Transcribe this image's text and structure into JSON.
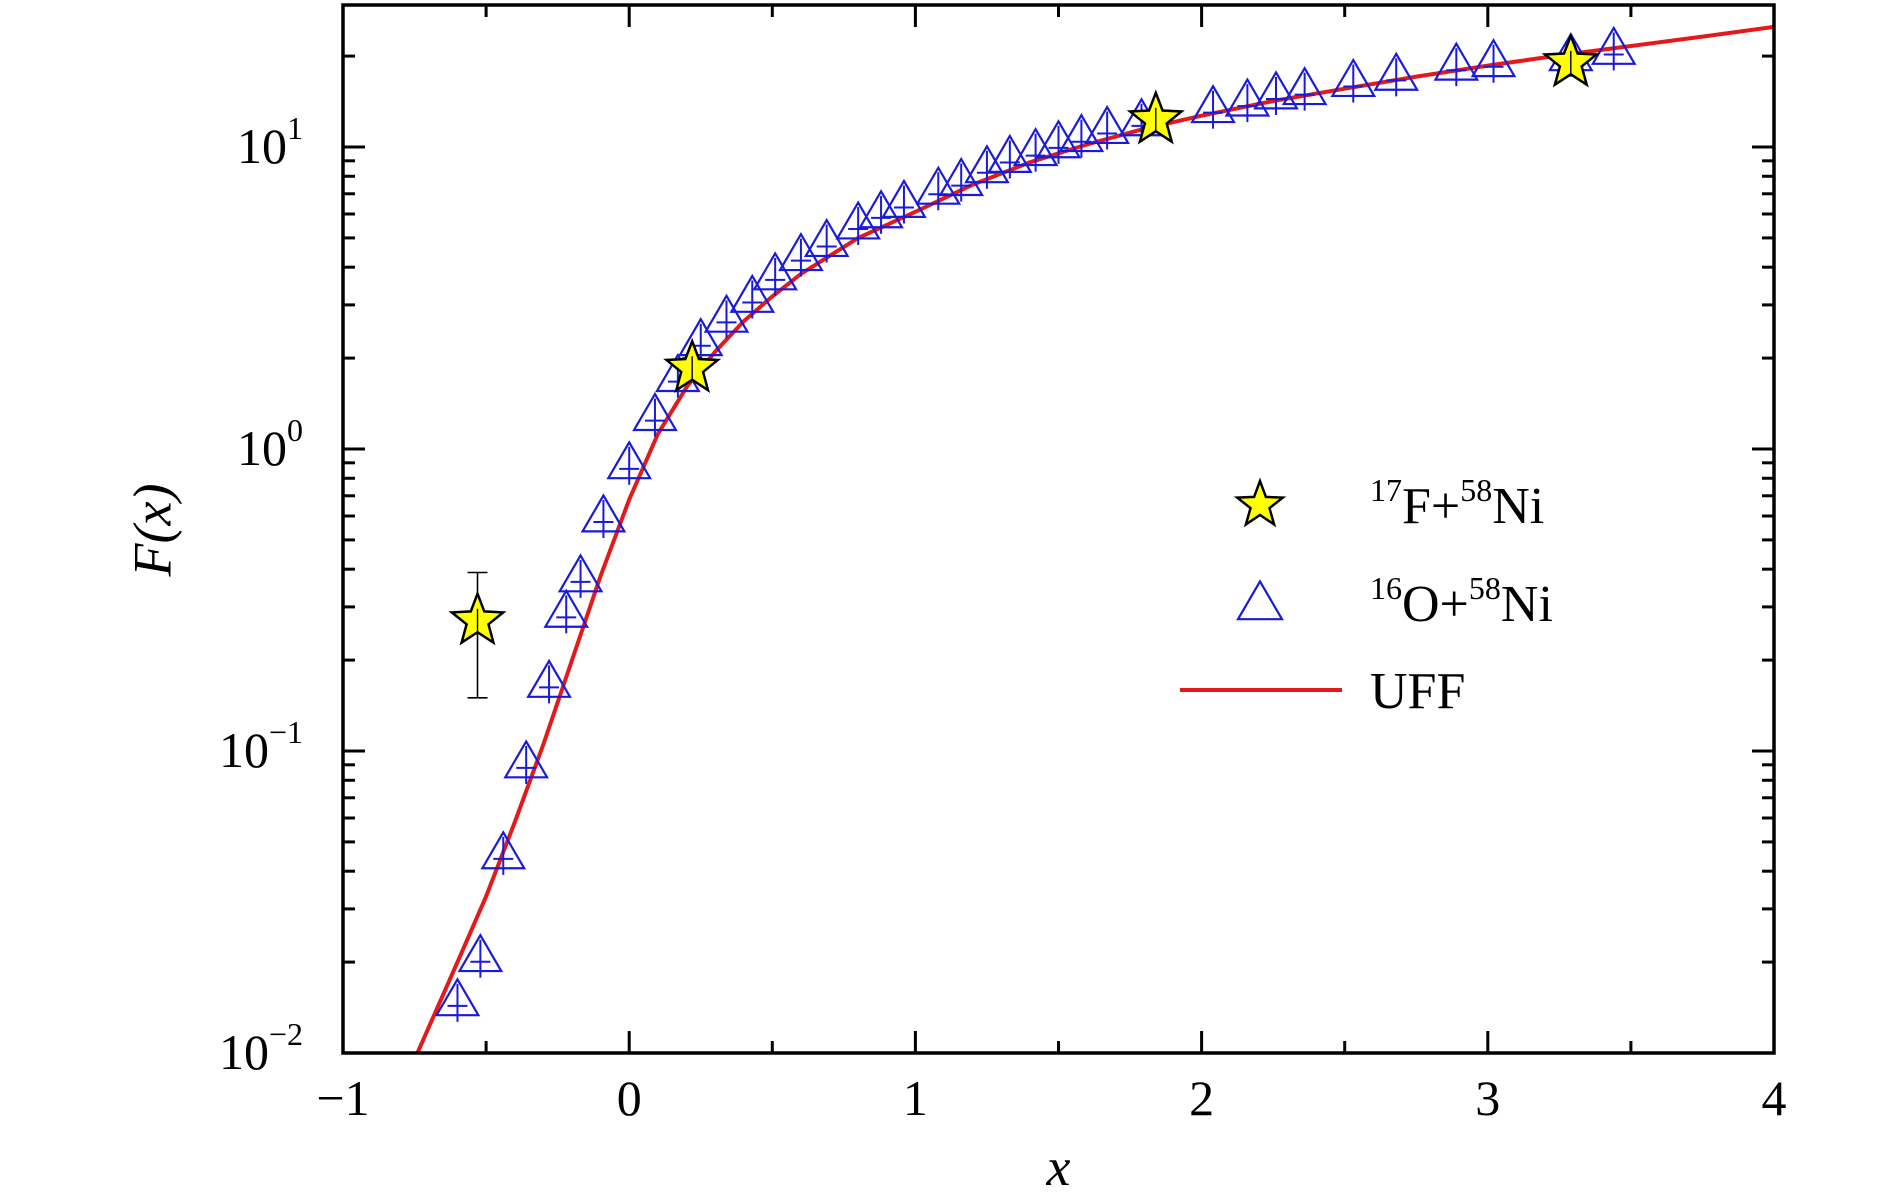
{
  "chart_data": {
    "type": "scatter",
    "title": "",
    "xlabel": "x",
    "ylabel": "F(x)",
    "xlim": [
      -1,
      4
    ],
    "ylim": [
      0.01,
      30
    ],
    "y_scale": "log",
    "grid": false,
    "legend_position": "right-middle",
    "x_ticks": [
      -1,
      0,
      1,
      2,
      3,
      4
    ],
    "x_tick_labels": [
      "−1",
      "0",
      "1",
      "2",
      "3",
      "4"
    ],
    "y_ticks": [
      {
        "value": 0.01,
        "base": "10",
        "exp": "−2"
      },
      {
        "value": 0.1,
        "base": "10",
        "exp": "−1"
      },
      {
        "value": 1,
        "base": "10",
        "exp": "0"
      },
      {
        "value": 10,
        "base": "10",
        "exp": "1"
      }
    ],
    "series": [
      {
        "name_parts": [
          {
            "t": "17",
            "sup": true
          },
          {
            "t": "F+",
            "sup": false
          },
          {
            "t": "58",
            "sup": true
          },
          {
            "t": "Ni",
            "sup": false
          }
        ],
        "marker": "star",
        "color": "#ffff00",
        "edge_color": "#000000",
        "points": [
          {
            "x": -0.53,
            "y": 0.27,
            "y_low": 0.15,
            "y_high": 0.39
          },
          {
            "x": 0.22,
            "y": 1.85,
            "y_low": 1.7,
            "y_high": 2.0
          },
          {
            "x": 1.84,
            "y": 12.3,
            "y_low": 11.6,
            "y_high": 13.0
          },
          {
            "x": 3.29,
            "y": 19.0,
            "y_low": 18.0,
            "y_high": 20.0
          }
        ]
      },
      {
        "name_parts": [
          {
            "t": "16",
            "sup": true
          },
          {
            "t": "O+",
            "sup": false
          },
          {
            "t": "58",
            "sup": true
          },
          {
            "t": "Ni",
            "sup": false
          }
        ],
        "marker": "triangle-open",
        "color": "#1a1adb",
        "points": [
          {
            "x": -0.6,
            "y": 0.015
          },
          {
            "x": -0.52,
            "y": 0.021
          },
          {
            "x": -0.44,
            "y": 0.046
          },
          {
            "x": -0.36,
            "y": 0.092
          },
          {
            "x": -0.28,
            "y": 0.17
          },
          {
            "x": -0.22,
            "y": 0.29
          },
          {
            "x": -0.17,
            "y": 0.38
          },
          {
            "x": -0.09,
            "y": 0.6
          },
          {
            "x": 0.0,
            "y": 0.9
          },
          {
            "x": 0.09,
            "y": 1.3
          },
          {
            "x": 0.17,
            "y": 1.75
          },
          {
            "x": 0.25,
            "y": 2.3
          },
          {
            "x": 0.34,
            "y": 2.75
          },
          {
            "x": 0.43,
            "y": 3.2
          },
          {
            "x": 0.51,
            "y": 3.8
          },
          {
            "x": 0.6,
            "y": 4.4
          },
          {
            "x": 0.69,
            "y": 4.9
          },
          {
            "x": 0.8,
            "y": 5.6
          },
          {
            "x": 0.88,
            "y": 6.1
          },
          {
            "x": 0.96,
            "y": 6.6
          },
          {
            "x": 1.08,
            "y": 7.3
          },
          {
            "x": 1.16,
            "y": 7.8
          },
          {
            "x": 1.25,
            "y": 8.6
          },
          {
            "x": 1.33,
            "y": 9.3
          },
          {
            "x": 1.42,
            "y": 9.8
          },
          {
            "x": 1.5,
            "y": 10.4
          },
          {
            "x": 1.58,
            "y": 10.9
          },
          {
            "x": 1.67,
            "y": 11.6
          },
          {
            "x": 1.79,
            "y": 12.3
          },
          {
            "x": 2.04,
            "y": 13.6
          },
          {
            "x": 2.16,
            "y": 14.3
          },
          {
            "x": 2.26,
            "y": 15.1
          },
          {
            "x": 2.36,
            "y": 15.6
          },
          {
            "x": 2.53,
            "y": 16.6
          },
          {
            "x": 2.68,
            "y": 17.4
          },
          {
            "x": 2.89,
            "y": 18.8
          },
          {
            "x": 3.02,
            "y": 19.3
          },
          {
            "x": 3.29,
            "y": 20.2
          },
          {
            "x": 3.44,
            "y": 21.2
          }
        ]
      },
      {
        "name": "UFF",
        "type": "line",
        "color": "#e41a1a",
        "points": [
          {
            "x": -0.74,
            "y": 0.01
          },
          {
            "x": -0.6,
            "y": 0.02
          },
          {
            "x": -0.5,
            "y": 0.033
          },
          {
            "x": -0.4,
            "y": 0.058
          },
          {
            "x": -0.3,
            "y": 0.105
          },
          {
            "x": -0.2,
            "y": 0.2
          },
          {
            "x": -0.1,
            "y": 0.38
          },
          {
            "x": 0.0,
            "y": 0.68
          },
          {
            "x": 0.1,
            "y": 1.12
          },
          {
            "x": 0.2,
            "y": 1.6
          },
          {
            "x": 0.3,
            "y": 2.1
          },
          {
            "x": 0.4,
            "y": 2.65
          },
          {
            "x": 0.5,
            "y": 3.2
          },
          {
            "x": 0.6,
            "y": 3.8
          },
          {
            "x": 0.8,
            "y": 5.0
          },
          {
            "x": 1.0,
            "y": 6.1
          },
          {
            "x": 1.2,
            "y": 7.5
          },
          {
            "x": 1.4,
            "y": 8.9
          },
          {
            "x": 1.6,
            "y": 10.2
          },
          {
            "x": 1.8,
            "y": 11.5
          },
          {
            "x": 2.0,
            "y": 12.7
          },
          {
            "x": 2.25,
            "y": 14.2
          },
          {
            "x": 2.5,
            "y": 15.6
          },
          {
            "x": 2.75,
            "y": 17.1
          },
          {
            "x": 3.0,
            "y": 18.6
          },
          {
            "x": 3.25,
            "y": 20.1
          },
          {
            "x": 3.5,
            "y": 21.6
          },
          {
            "x": 3.75,
            "y": 23.2
          },
          {
            "x": 4.0,
            "y": 25.0
          }
        ]
      }
    ]
  }
}
